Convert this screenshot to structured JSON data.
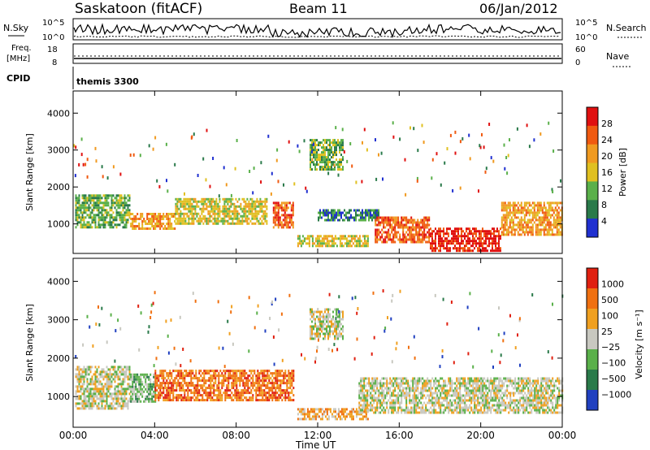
{
  "header": {
    "station": "Saskatoon (fitACF)",
    "beam": "Beam 11",
    "date": "06/Jan/2012"
  },
  "noise_panel": {
    "left_label": "N.Sky",
    "right_label": "N.Search",
    "left_ticks": [
      "10^5",
      "10^0"
    ],
    "right_ticks": [
      "10^5",
      "10^0"
    ]
  },
  "freq_panel": {
    "left_label_1": "Freq.",
    "left_label_2": "[MHz]",
    "right_label": "Nave",
    "left_ticks": [
      "18",
      "8"
    ],
    "right_ticks": [
      "60",
      "0"
    ]
  },
  "cpid_panel": {
    "label": "CPID",
    "value": "themis 3300"
  },
  "power_panel": {
    "ylabel": "Slant Range [km]",
    "yticks": [
      "4000",
      "3000",
      "2000",
      "1000"
    ],
    "colorbar_title": "Power [dB]",
    "colorbar_ticks": [
      "28",
      "24",
      "20",
      "16",
      "12",
      "8",
      "4"
    ]
  },
  "velocity_panel": {
    "ylabel": "Slant Range [km]",
    "yticks": [
      "4000",
      "3000",
      "2000",
      "1000"
    ],
    "colorbar_title": "Velocity [m s⁻¹]",
    "colorbar_ticks": [
      "1000",
      "500",
      "100",
      "25",
      "−25",
      "−100",
      "−500",
      "−1000"
    ]
  },
  "x_axis": {
    "ticks": [
      "00:00",
      "04:00",
      "08:00",
      "12:00",
      "16:00",
      "20:00",
      "00:00"
    ],
    "label": "Time UT"
  },
  "chart_data": {
    "type": "heatmap",
    "x_units": "hours UT",
    "xlim": [
      0,
      24
    ],
    "y_units": "km",
    "ylim": [
      200,
      4600
    ],
    "power_colors": [
      "#2030d0",
      "#2a7a4a",
      "#5ab04a",
      "#e0c020",
      "#f09a20",
      "#f05a10",
      "#e01010"
    ],
    "power_levels_db": [
      4,
      8,
      12,
      16,
      20,
      24,
      28
    ],
    "velocity_colors": [
      "#2040c0",
      "#2a7a4a",
      "#5ab04a",
      "#c8c8c0",
      "#f0a020",
      "#f07010",
      "#e02010"
    ],
    "velocity_levels": [
      1000,
      500,
      100,
      25,
      -25,
      -100,
      -500,
      -1000
    ],
    "power_regions": [
      {
        "t0": 0.1,
        "t1": 2.8,
        "r0": 900,
        "r1": 1800,
        "level": 2
      },
      {
        "t0": 2.8,
        "t1": 5.0,
        "r0": 900,
        "r1": 1300,
        "level": 4
      },
      {
        "t0": 5.0,
        "t1": 9.5,
        "r0": 1000,
        "r1": 1700,
        "level": 3
      },
      {
        "t0": 9.8,
        "t1": 10.8,
        "r0": 900,
        "r1": 1600,
        "level": 5
      },
      {
        "t0": 11.6,
        "t1": 13.2,
        "r0": 2500,
        "r1": 3300,
        "level": 2
      },
      {
        "t0": 12.0,
        "t1": 15.0,
        "r0": 1100,
        "r1": 1400,
        "level": 1
      },
      {
        "t0": 11.0,
        "t1": 14.5,
        "r0": 400,
        "r1": 700,
        "level": 3
      },
      {
        "t0": 14.8,
        "t1": 17.5,
        "r0": 500,
        "r1": 1200,
        "level": 5
      },
      {
        "t0": 17.5,
        "t1": 21.0,
        "r0": 300,
        "r1": 900,
        "level": 6
      },
      {
        "t0": 21.0,
        "t1": 24.0,
        "r0": 700,
        "r1": 1600,
        "level": 4
      }
    ],
    "velocity_regions": [
      {
        "t0": 0.1,
        "t1": 2.8,
        "r0": 700,
        "r1": 1800,
        "level": 3
      },
      {
        "t0": 2.8,
        "t1": 4.0,
        "r0": 900,
        "r1": 1600,
        "level": 2
      },
      {
        "t0": 4.0,
        "t1": 10.8,
        "r0": 900,
        "r1": 1700,
        "level": 5
      },
      {
        "t0": 11.6,
        "t1": 13.2,
        "r0": 2500,
        "r1": 3300,
        "level": 3
      },
      {
        "t0": 11.0,
        "t1": 14.5,
        "r0": 400,
        "r1": 700,
        "level": 4
      },
      {
        "t0": 14.0,
        "t1": 24.0,
        "r0": 600,
        "r1": 1500,
        "level": 3
      }
    ]
  }
}
